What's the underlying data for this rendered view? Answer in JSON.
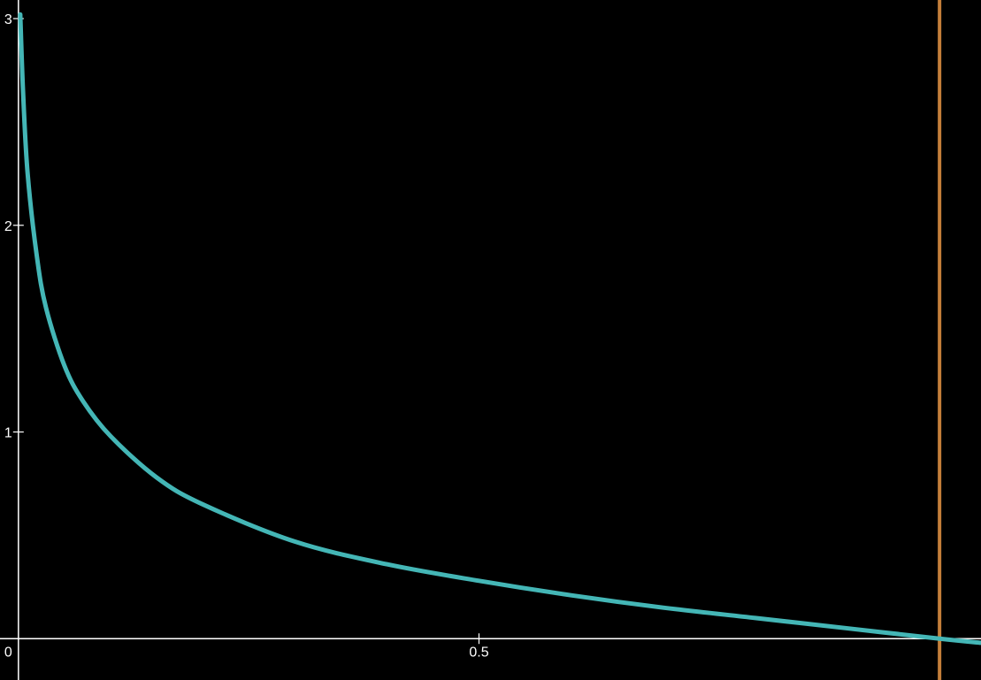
{
  "chart_data": {
    "type": "line",
    "title": "",
    "xlabel": "",
    "ylabel": "",
    "xlim": [
      -0.02,
      1.045
    ],
    "ylim": [
      -0.2,
      3.09
    ],
    "grid": false,
    "x_ticks": [
      {
        "value": 0.5,
        "label": "0.5"
      }
    ],
    "y_ticks": [
      {
        "value": 1,
        "label": "1"
      },
      {
        "value": 2,
        "label": "2"
      },
      {
        "value": 3,
        "label": "3"
      }
    ],
    "origin_label": "0",
    "series": [
      {
        "color": "#44b6b6",
        "x": [
          0.002,
          0.005,
          0.01,
          0.02,
          0.03,
          0.05,
          0.07,
          0.1,
          0.15,
          0.2,
          0.3,
          0.4,
          0.5,
          0.6,
          0.7,
          0.8,
          0.9,
          1.0,
          1.045
        ],
        "y": [
          3.02,
          2.65,
          2.25,
          1.85,
          1.6,
          1.32,
          1.15,
          0.98,
          0.78,
          0.65,
          0.47,
          0.36,
          0.28,
          0.21,
          0.15,
          0.1,
          0.05,
          0.0,
          -0.02
        ]
      }
    ],
    "vertical_lines": [
      {
        "x": 1.0,
        "color": "#c47f3a"
      }
    ]
  }
}
